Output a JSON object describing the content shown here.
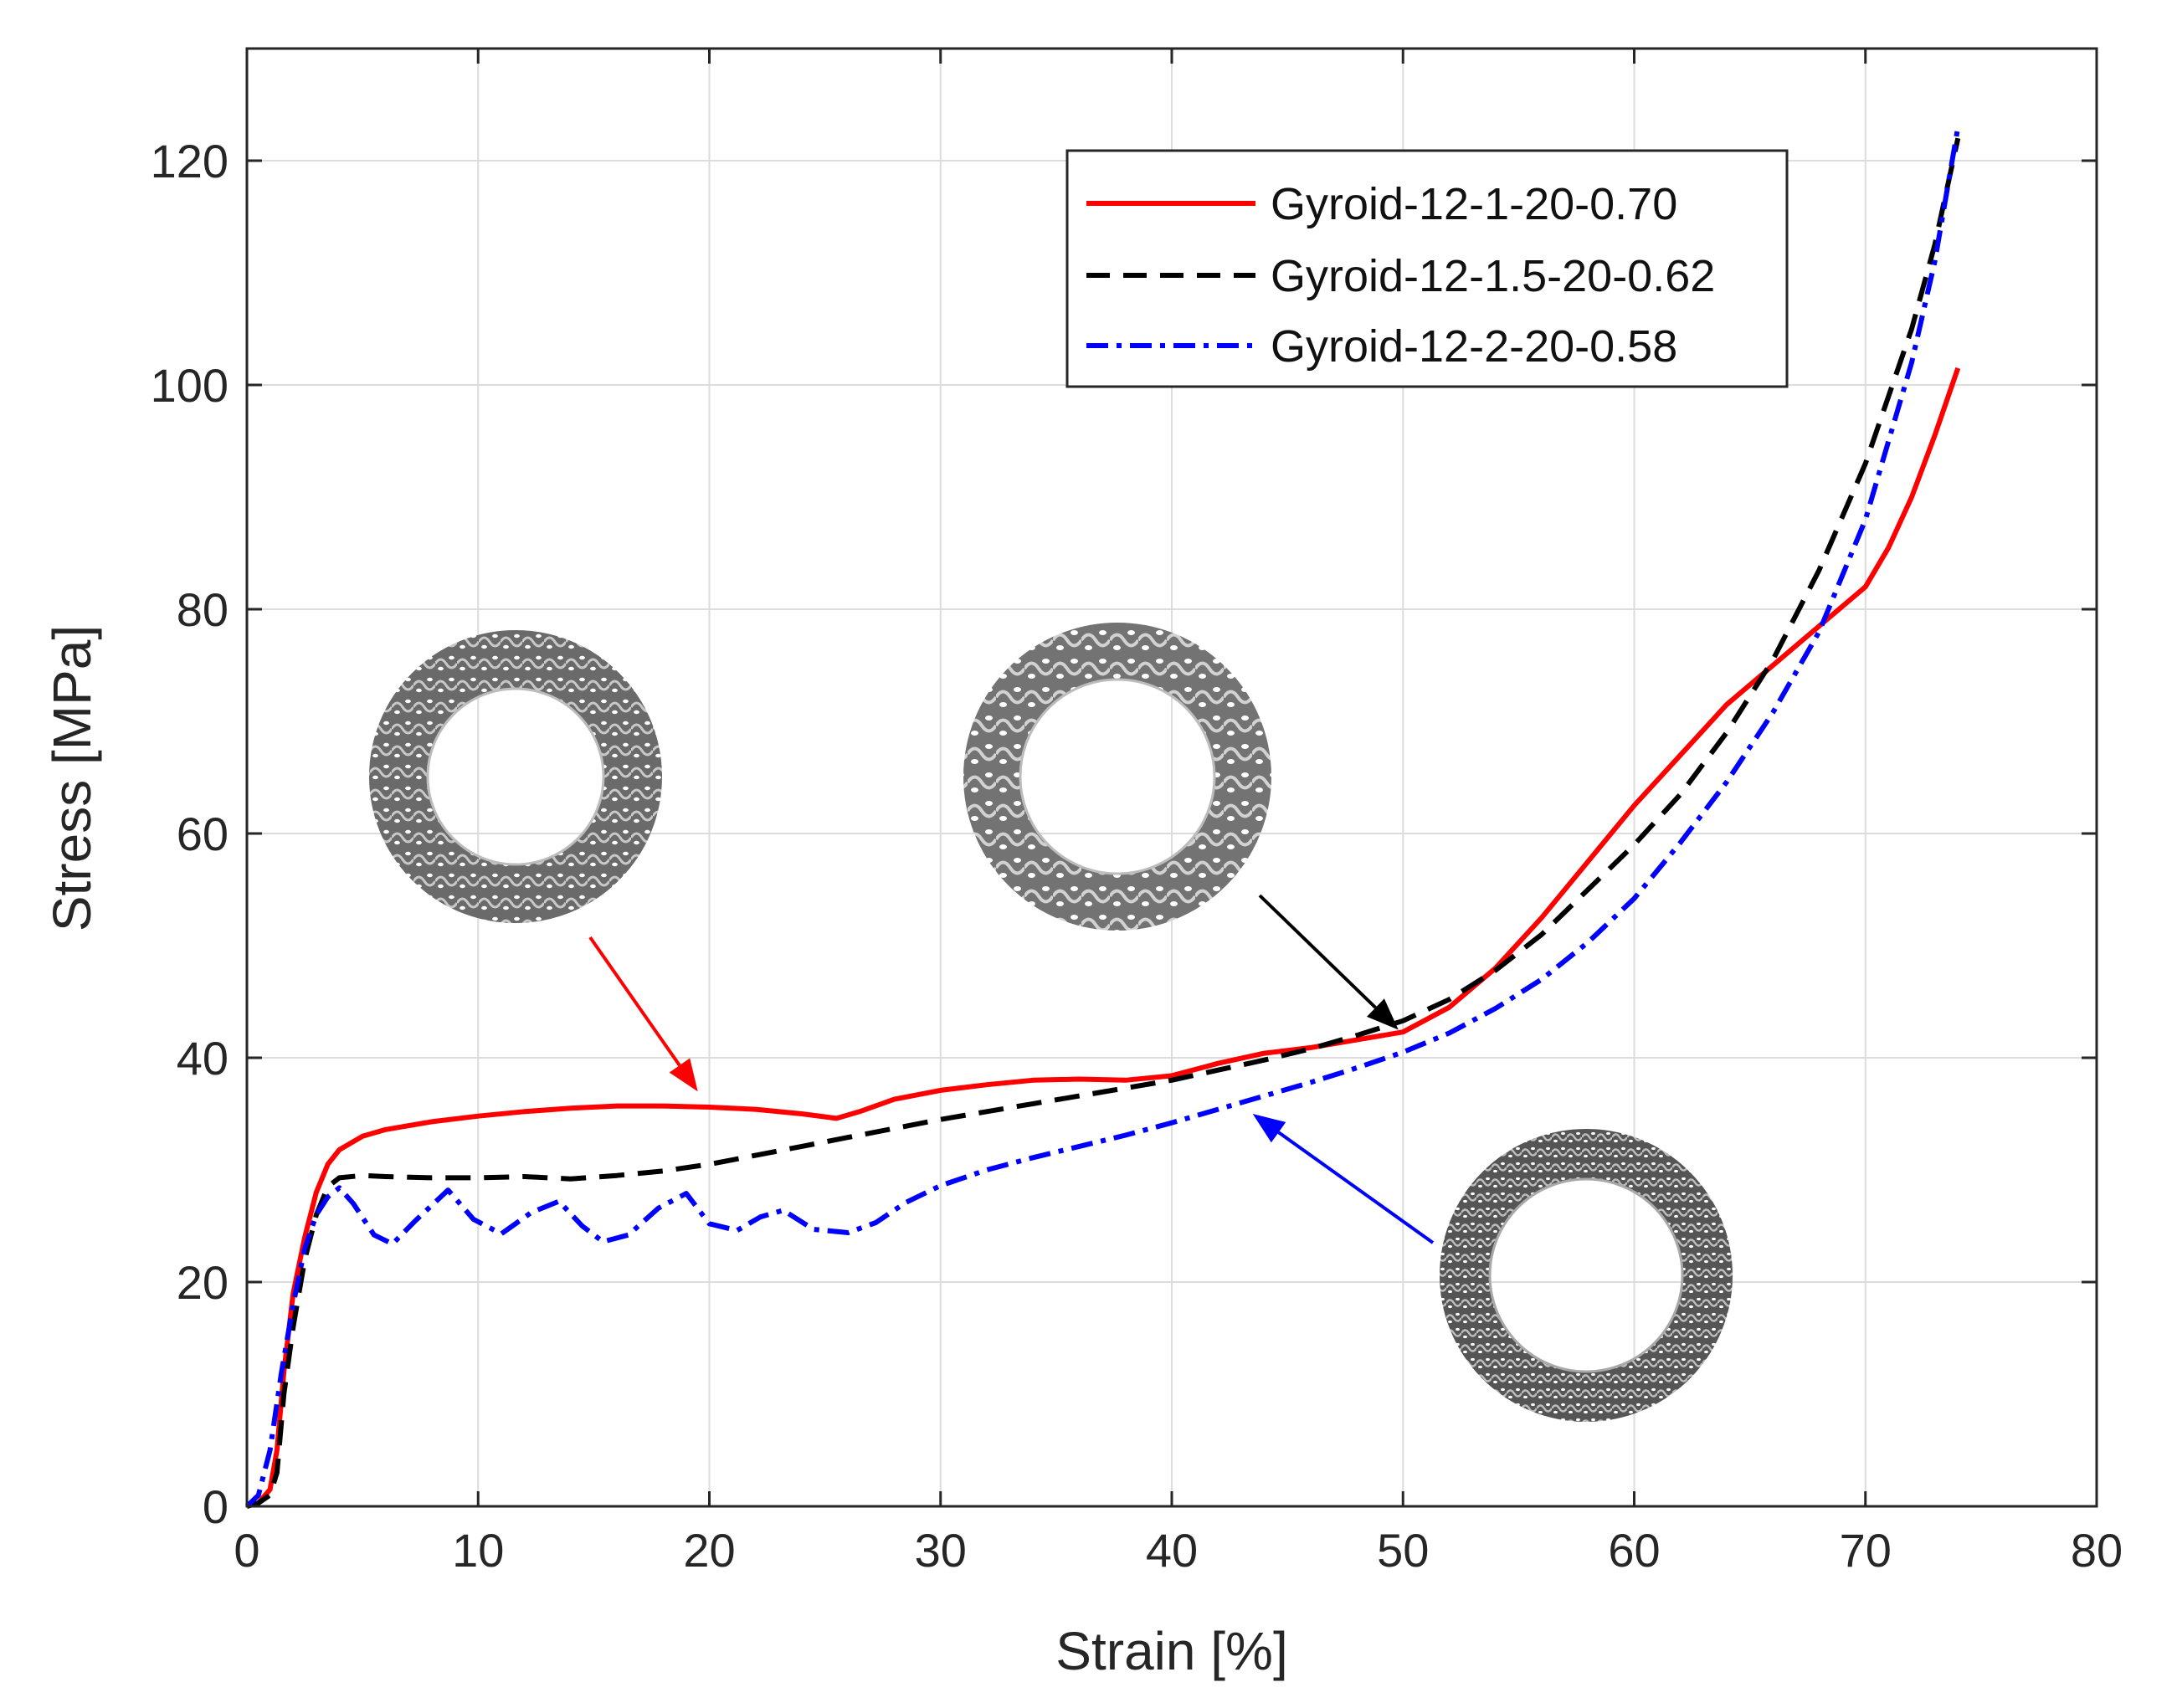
{
  "chart_data": {
    "type": "line",
    "title": "",
    "xlabel": "Strain [%]",
    "ylabel": "Stress [MPa]",
    "xlim": [
      0,
      80
    ],
    "ylim": [
      0,
      130
    ],
    "xticks": [
      0,
      10,
      20,
      30,
      40,
      50,
      60,
      70,
      80
    ],
    "yticks": [
      0,
      20,
      40,
      60,
      80,
      100,
      120
    ],
    "grid": true,
    "legend_position": "top-right",
    "series": [
      {
        "name": "Gyroid-12-1-20-0.70",
        "color": "#ff0000",
        "style": "solid",
        "x": [
          0,
          0.5,
          1,
          1.3,
          1.6,
          2,
          2.5,
          3,
          3.5,
          4,
          5,
          6,
          8,
          10,
          12,
          14,
          16,
          18,
          20,
          22,
          24,
          25.5,
          26.5,
          28,
          30,
          32,
          34,
          36,
          38,
          40,
          42,
          44,
          46,
          48,
          50,
          52,
          54,
          56,
          58,
          60,
          62,
          64,
          66,
          68,
          70,
          71,
          72,
          73,
          74
        ],
        "y": [
          0,
          0.3,
          1.5,
          5,
          12,
          19,
          24,
          28,
          30.5,
          31.8,
          33,
          33.6,
          34.3,
          34.8,
          35.2,
          35.5,
          35.7,
          35.7,
          35.6,
          35.4,
          35.0,
          34.6,
          35.2,
          36.3,
          37.1,
          37.6,
          38.0,
          38.1,
          38.0,
          38.4,
          39.5,
          40.4,
          40.9,
          41.6,
          42.3,
          44.5,
          48,
          52.5,
          57.5,
          62.5,
          67,
          71.5,
          75,
          78.5,
          82,
          85.5,
          90,
          95.5,
          101.5
        ]
      },
      {
        "name": "Gyroid-12-1.5-20-0.62",
        "color": "#000000",
        "style": "dashed",
        "x": [
          0,
          0.5,
          1,
          1.3,
          1.6,
          2,
          2.5,
          3,
          3.5,
          4,
          5,
          6,
          8,
          10,
          12,
          14,
          16,
          18,
          20,
          22,
          24,
          26,
          28,
          30,
          32,
          34,
          36,
          38,
          40,
          42,
          44,
          46,
          48,
          50,
          52,
          54,
          56,
          58,
          60,
          62,
          64,
          66,
          68,
          70,
          72,
          73,
          74
        ],
        "y": [
          0,
          0.3,
          1,
          3,
          10,
          16,
          22,
          26,
          28.5,
          29.3,
          29.5,
          29.4,
          29.3,
          29.3,
          29.4,
          29.2,
          29.5,
          29.9,
          30.5,
          31.3,
          32.1,
          32.9,
          33.7,
          34.5,
          35.2,
          35.9,
          36.6,
          37.3,
          38.0,
          38.9,
          39.8,
          40.8,
          42.0,
          43.3,
          45.2,
          47.8,
          51.0,
          55.0,
          59.0,
          63.5,
          69.0,
          75.5,
          83.5,
          93.0,
          105.0,
          112.5,
          122.0
        ]
      },
      {
        "name": "Gyroid-12-2-20-0.58",
        "color": "#0000ff",
        "style": "dashdot",
        "x": [
          0,
          0.5,
          1,
          1.5,
          2,
          2.5,
          3,
          3.5,
          4,
          4.6,
          5.5,
          6.3,
          7.3,
          8.7,
          9.8,
          11,
          12.3,
          13.5,
          14.5,
          15.4,
          16.5,
          17.8,
          19,
          20,
          21.2,
          22.2,
          23.2,
          24.5,
          26,
          27.2,
          28.5,
          30,
          32,
          34,
          36,
          38,
          40,
          42,
          44,
          46,
          48,
          50,
          52,
          54,
          56,
          58,
          60,
          62,
          64,
          66,
          68,
          70,
          72,
          73,
          74
        ],
        "y": [
          0,
          1,
          5,
          12,
          18,
          23,
          26,
          27.6,
          28.4,
          27.0,
          24.2,
          23.4,
          25.5,
          28.2,
          25.6,
          24.3,
          26.2,
          27.2,
          25.0,
          23.6,
          24.2,
          26.6,
          27.9,
          25.2,
          24.6,
          25.8,
          26.4,
          24.7,
          24.4,
          25.3,
          27.1,
          28.6,
          30.0,
          31.1,
          32.1,
          33.1,
          34.2,
          35.4,
          36.6,
          37.8,
          39.1,
          40.5,
          42.2,
          44.4,
          47.0,
          50.3,
          54.2,
          59.2,
          64.6,
          70.8,
          78.0,
          88.0,
          102.0,
          111.0,
          123.0
        ]
      }
    ],
    "annotations": [
      {
        "name": "Gyroid-12-1-20-0.70 cross-section",
        "target_series": 0,
        "arrow_tip": [
          19.5,
          37.0
        ]
      },
      {
        "name": "Gyroid-12-1.5-20-0.62 cross-section",
        "target_series": 1,
        "arrow_tip": [
          49.8,
          42.5
        ]
      },
      {
        "name": "Gyroid-12-2-20-0.58 cross-section",
        "target_series": 2,
        "arrow_tip": [
          43.5,
          35.0
        ]
      }
    ]
  }
}
